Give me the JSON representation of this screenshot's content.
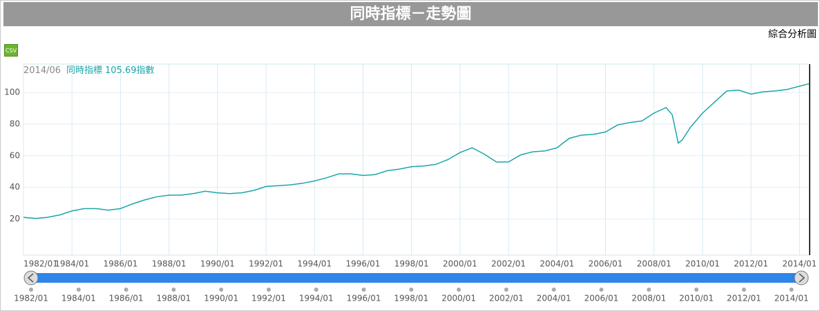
{
  "header": {
    "title": "同時指標－走勢圖",
    "subtitle": "綜合分析圖",
    "csv": "CSV"
  },
  "chart_data": {
    "type": "line",
    "legend": {
      "date": "2014/06",
      "unit": "指數"
    },
    "x": [
      "1982/01",
      "1982/07",
      "1983/01",
      "1983/07",
      "1984/01",
      "1984/07",
      "1985/01",
      "1985/07",
      "1986/01",
      "1986/07",
      "1987/01",
      "1987/07",
      "1988/01",
      "1988/07",
      "1989/01",
      "1989/07",
      "1990/01",
      "1990/07",
      "1991/01",
      "1991/07",
      "1992/01",
      "1992/07",
      "1993/01",
      "1993/07",
      "1994/01",
      "1994/07",
      "1995/01",
      "1995/07",
      "1996/01",
      "1996/07",
      "1997/01",
      "1997/07",
      "1998/01",
      "1998/07",
      "1999/01",
      "1999/07",
      "2000/01",
      "2000/07",
      "2001/01",
      "2001/07",
      "2002/01",
      "2002/07",
      "2003/01",
      "2003/07",
      "2004/01",
      "2004/07",
      "2005/01",
      "2005/07",
      "2006/01",
      "2006/07",
      "2007/01",
      "2007/07",
      "2008/01",
      "2008/07",
      "2008/10",
      "2009/01",
      "2009/03",
      "2009/07",
      "2010/01",
      "2010/07",
      "2011/01",
      "2011/07",
      "2012/01",
      "2012/07",
      "2013/01",
      "2013/07",
      "2014/01",
      "2014/06"
    ],
    "series": [
      {
        "name": "同時指標",
        "color": "#1aa5a8",
        "values": [
          21,
          20.3,
          21,
          22.5,
          25,
          26.5,
          26.5,
          25.5,
          26.5,
          29.5,
          32,
          34,
          35,
          35,
          36,
          37.5,
          36.5,
          36,
          36.5,
          38,
          40.5,
          41,
          41.5,
          42.5,
          44,
          46,
          48.5,
          48.5,
          47.5,
          48,
          50.5,
          51.5,
          53,
          53.5,
          54.5,
          57.5,
          62,
          65,
          61,
          56,
          56,
          60.5,
          62.5,
          63,
          65,
          71,
          73,
          73.5,
          75,
          79.5,
          81,
          82,
          87,
          90.5,
          86,
          68,
          70,
          78,
          87,
          94,
          101,
          101.5,
          99,
          100.5,
          101,
          102,
          104,
          105.69
        ]
      }
    ],
    "xlim": [
      "1982/01",
      "2014/06"
    ],
    "xticks": [
      "1982/01",
      "1984/01",
      "1986/01",
      "1988/01",
      "1990/01",
      "1992/01",
      "1994/01",
      "1996/01",
      "1998/01",
      "2000/01",
      "2002/01",
      "2004/01",
      "2006/01",
      "2008/01",
      "2010/01",
      "2012/01",
      "2014/01"
    ],
    "ylim": [
      -3,
      118
    ],
    "yticks": [
      20,
      40,
      60,
      80,
      100
    ],
    "grid": true
  }
}
